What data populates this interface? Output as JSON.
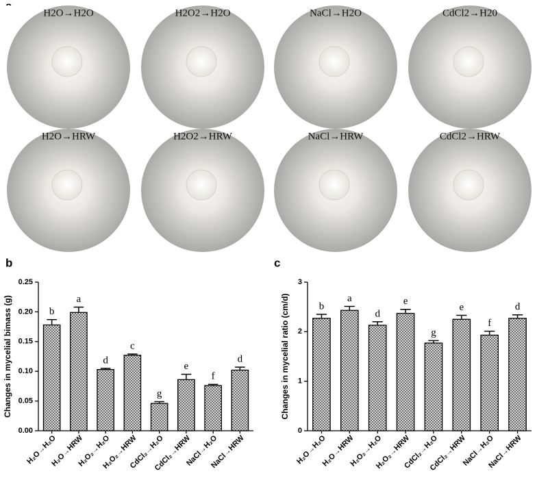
{
  "panel_labels": [
    "a",
    "b",
    "c"
  ],
  "photos": [
    "H2O→H2O",
    "H2O2→H2O",
    "NaCl→H2O",
    "CdCl2→H20",
    "H2O→HRW",
    "H2O2→HRW",
    "NaCl→HRW",
    "CdCl2→HRW"
  ],
  "chart_data": [
    {
      "type": "bar",
      "y_label": "Changes in mycelial bimass (g)",
      "categories": [
        "H₂O→H₂O",
        "H₂O→HRW",
        "H₂O₂→H₂O",
        "H₂O₂→HRW",
        "CdCl₂→H₂O",
        "CdCl₂→HRW",
        "NaCl→H₂O",
        "NaCl→HRW"
      ],
      "values": [
        0.178,
        0.199,
        0.103,
        0.127,
        0.046,
        0.086,
        0.076,
        0.102
      ],
      "errors": [
        0.009,
        0.009,
        0.002,
        0.002,
        0.003,
        0.009,
        0.002,
        0.005
      ],
      "annotations": [
        "b",
        "a",
        "d",
        "c",
        "g",
        "e",
        "f",
        "d"
      ],
      "ylim": [
        0,
        0.25
      ],
      "yticks": [
        {
          "value": 0,
          "label": "0.00"
        },
        {
          "value": 0.05,
          "label": "0.05"
        },
        {
          "value": 0.1,
          "label": "0.10"
        },
        {
          "value": 0.15,
          "label": "0.15"
        },
        {
          "value": 0.2,
          "label": "0.20"
        },
        {
          "value": 0.25,
          "label": "0.25"
        }
      ],
      "color": "#555555"
    },
    {
      "type": "bar",
      "y_label": "Changes in mycelial ratio (cm/d)",
      "categories": [
        "H₂O→H₂O",
        "H₂O→HRW",
        "H₂O₂→H₂O",
        "H₂O₂→HRW",
        "CdCl₂→H₂O",
        "CdCl₂→HRW",
        "NaCl→H₂O",
        "NaCl→HRW"
      ],
      "values": [
        2.27,
        2.43,
        2.13,
        2.37,
        1.77,
        2.25,
        1.93,
        2.27
      ],
      "errors": [
        0.08,
        0.08,
        0.07,
        0.08,
        0.05,
        0.08,
        0.08,
        0.07
      ],
      "annotations": [
        "b",
        "a",
        "d",
        "e",
        "g",
        "e",
        "f",
        "d"
      ],
      "ylim": [
        0,
        3
      ],
      "yticks": [
        0,
        1,
        2,
        3
      ],
      "color": "#555555"
    }
  ]
}
